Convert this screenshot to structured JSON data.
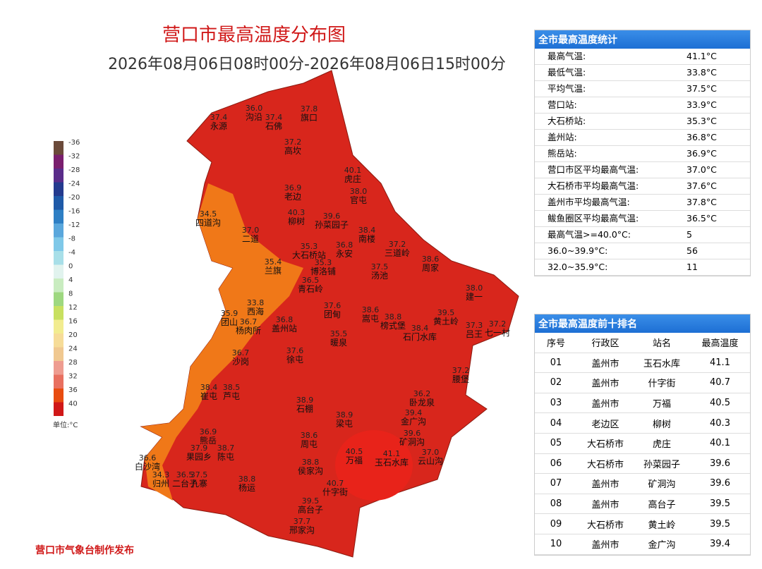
{
  "header": {
    "title": "营口市最高温度分布图",
    "subtitle": "2026年08月06日08时00分-2026年08月06日15时00分"
  },
  "legend": {
    "items": [
      {
        "label": "-36",
        "color": "#6b4a3a"
      },
      {
        "label": "-32",
        "color": "#7a1f6e"
      },
      {
        "label": "-28",
        "color": "#5a2c8a"
      },
      {
        "label": "-24",
        "color": "#243a8e"
      },
      {
        "label": "-20",
        "color": "#1f5aa8"
      },
      {
        "label": "-16",
        "color": "#2e7fc4"
      },
      {
        "label": "-12",
        "color": "#5aa7dc"
      },
      {
        "label": "-8",
        "color": "#7fc8e8"
      },
      {
        "label": "-4",
        "color": "#a8dfe8"
      },
      {
        "label": "0",
        "color": "#e1f3ee"
      },
      {
        "label": "4",
        "color": "#c9ecc0"
      },
      {
        "label": "8",
        "color": "#9ed880"
      },
      {
        "label": "12",
        "color": "#c8e060"
      },
      {
        "label": "16",
        "color": "#f2ec90"
      },
      {
        "label": "20",
        "color": "#f6dc98"
      },
      {
        "label": "24",
        "color": "#f0c890"
      },
      {
        "label": "28",
        "color": "#ee9c90"
      },
      {
        "label": "32",
        "color": "#e87060"
      },
      {
        "label": "36",
        "color": "#e84c10"
      },
      {
        "label": "40",
        "color": "#d01818"
      }
    ],
    "unit": "单位:°C"
  },
  "footer": "营口市气象台制作发布",
  "stations": [
    {
      "value": "37.4",
      "name": "永源"
    },
    {
      "value": "36.0",
      "name": "沟沿"
    },
    {
      "value": "37.4",
      "name": "石佛"
    },
    {
      "value": "37.8",
      "name": "旗口"
    },
    {
      "value": "37.2",
      "name": "高坎"
    },
    {
      "value": "36.9",
      "name": "老边"
    },
    {
      "value": "40.1",
      "name": "虎庄"
    },
    {
      "value": "38.0",
      "name": "官屯"
    },
    {
      "value": "39.6",
      "name": "孙菜园子"
    },
    {
      "value": "34.5",
      "name": "四道沟"
    },
    {
      "value": "40.3",
      "name": "柳树"
    },
    {
      "value": "37.0",
      "name": "二道"
    },
    {
      "value": "38.4",
      "name": "南楼"
    },
    {
      "value": "35.3",
      "name": "大石桥站"
    },
    {
      "value": "36.8",
      "name": "永安"
    },
    {
      "value": "37.2",
      "name": "三道岭"
    },
    {
      "value": "38.6",
      "name": "周家"
    },
    {
      "value": "35.4",
      "name": "兰旗"
    },
    {
      "value": "35.3",
      "name": "博洛铺"
    },
    {
      "value": "36.5",
      "name": "青石岭"
    },
    {
      "value": "37.5",
      "name": "汤池"
    },
    {
      "value": "38.0",
      "name": "建一"
    },
    {
      "value": "33.8",
      "name": "西海"
    },
    {
      "value": "37.6",
      "name": "团甸"
    },
    {
      "value": "38.6",
      "name": "嵩屯"
    },
    {
      "value": "38.8",
      "name": "榜式堡"
    },
    {
      "value": "39.5",
      "name": "黄土岭"
    },
    {
      "value": "38.4",
      "name": "石门水库"
    },
    {
      "value": "37.3",
      "name": "吕王"
    },
    {
      "value": "37.2",
      "name": "七一村"
    },
    {
      "value": "35.9",
      "name": "团山"
    },
    {
      "value": "36.7",
      "name": "杨肉所"
    },
    {
      "value": "36.8",
      "name": "盖州站"
    },
    {
      "value": "35.5",
      "name": "暖泉"
    },
    {
      "value": "36.7",
      "name": "沙岗"
    },
    {
      "value": "37.6",
      "name": "徐屯"
    },
    {
      "value": "37.2",
      "name": "腰堡"
    },
    {
      "value": "38.4",
      "name": "崔屯"
    },
    {
      "value": "38.5",
      "name": "芦屯"
    },
    {
      "value": "36.2",
      "name": "卧龙泉"
    },
    {
      "value": "38.9",
      "name": "石棚"
    },
    {
      "value": "39.4",
      "name": "金广沟"
    },
    {
      "value": "38.9",
      "name": "梁屯"
    },
    {
      "value": "36.9",
      "name": "熊岳"
    },
    {
      "value": "39.6",
      "name": "矿洞沟"
    },
    {
      "value": "38.6",
      "name": "周屯"
    },
    {
      "value": "37.9",
      "name": "果园乡"
    },
    {
      "value": "38.7",
      "name": "陈屯"
    },
    {
      "value": "40.5",
      "name": "万福"
    },
    {
      "value": "41.1",
      "name": "玉石水库"
    },
    {
      "value": "37.0",
      "name": "云山沟"
    },
    {
      "value": "36.6",
      "name": "白沙湾"
    },
    {
      "value": "38.8",
      "name": "侯家沟"
    },
    {
      "value": "34.3",
      "name": "归州"
    },
    {
      "value": "36.5",
      "name": "二台子"
    },
    {
      "value": "37.5",
      "name": "九寨"
    },
    {
      "value": "38.8",
      "name": "杨运"
    },
    {
      "value": "40.7",
      "name": "什字街"
    },
    {
      "value": "39.5",
      "name": "高台子"
    },
    {
      "value": "37.7",
      "name": "邢家沟"
    }
  ],
  "stats": {
    "title": "全市最高温度统计",
    "rows": [
      [
        "最高气温:",
        "41.1°C"
      ],
      [
        "最低气温:",
        "33.8°C"
      ],
      [
        "平均气温:",
        "37.5°C"
      ],
      [
        "营口站:",
        "33.9°C"
      ],
      [
        "大石桥站:",
        "35.3°C"
      ],
      [
        "盖州站:",
        "36.8°C"
      ],
      [
        "熊岳站:",
        "36.9°C"
      ],
      [
        "营口市区平均最高气温:",
        "37.0°C"
      ],
      [
        "大石桥市平均最高气温:",
        "37.6°C"
      ],
      [
        "盖州市平均最高气温:",
        "37.8°C"
      ],
      [
        "鲅鱼圈区平均最高气温:",
        "36.5°C"
      ],
      [
        "最高气温>=40.0°C:",
        "5"
      ],
      [
        "36.0~39.9°C:",
        "56"
      ],
      [
        "32.0~35.9°C:",
        "11"
      ]
    ]
  },
  "ranking": {
    "title": "全市最高温度前十排名",
    "header": [
      "序号",
      "行政区",
      "站名",
      "最高温度"
    ],
    "rows": [
      [
        "01",
        "盖州市",
        "玉石水库",
        "41.1"
      ],
      [
        "02",
        "盖州市",
        "什字街",
        "40.7"
      ],
      [
        "03",
        "盖州市",
        "万福",
        "40.5"
      ],
      [
        "04",
        "老边区",
        "柳树",
        "40.3"
      ],
      [
        "05",
        "大石桥市",
        "虎庄",
        "40.1"
      ],
      [
        "06",
        "大石桥市",
        "孙菜园子",
        "39.6"
      ],
      [
        "07",
        "盖州市",
        "矿洞沟",
        "39.6"
      ],
      [
        "08",
        "盖州市",
        "高台子",
        "39.5"
      ],
      [
        "09",
        "大石桥市",
        "黄土岭",
        "39.5"
      ],
      [
        "10",
        "盖州市",
        "金广沟",
        "39.4"
      ]
    ]
  }
}
